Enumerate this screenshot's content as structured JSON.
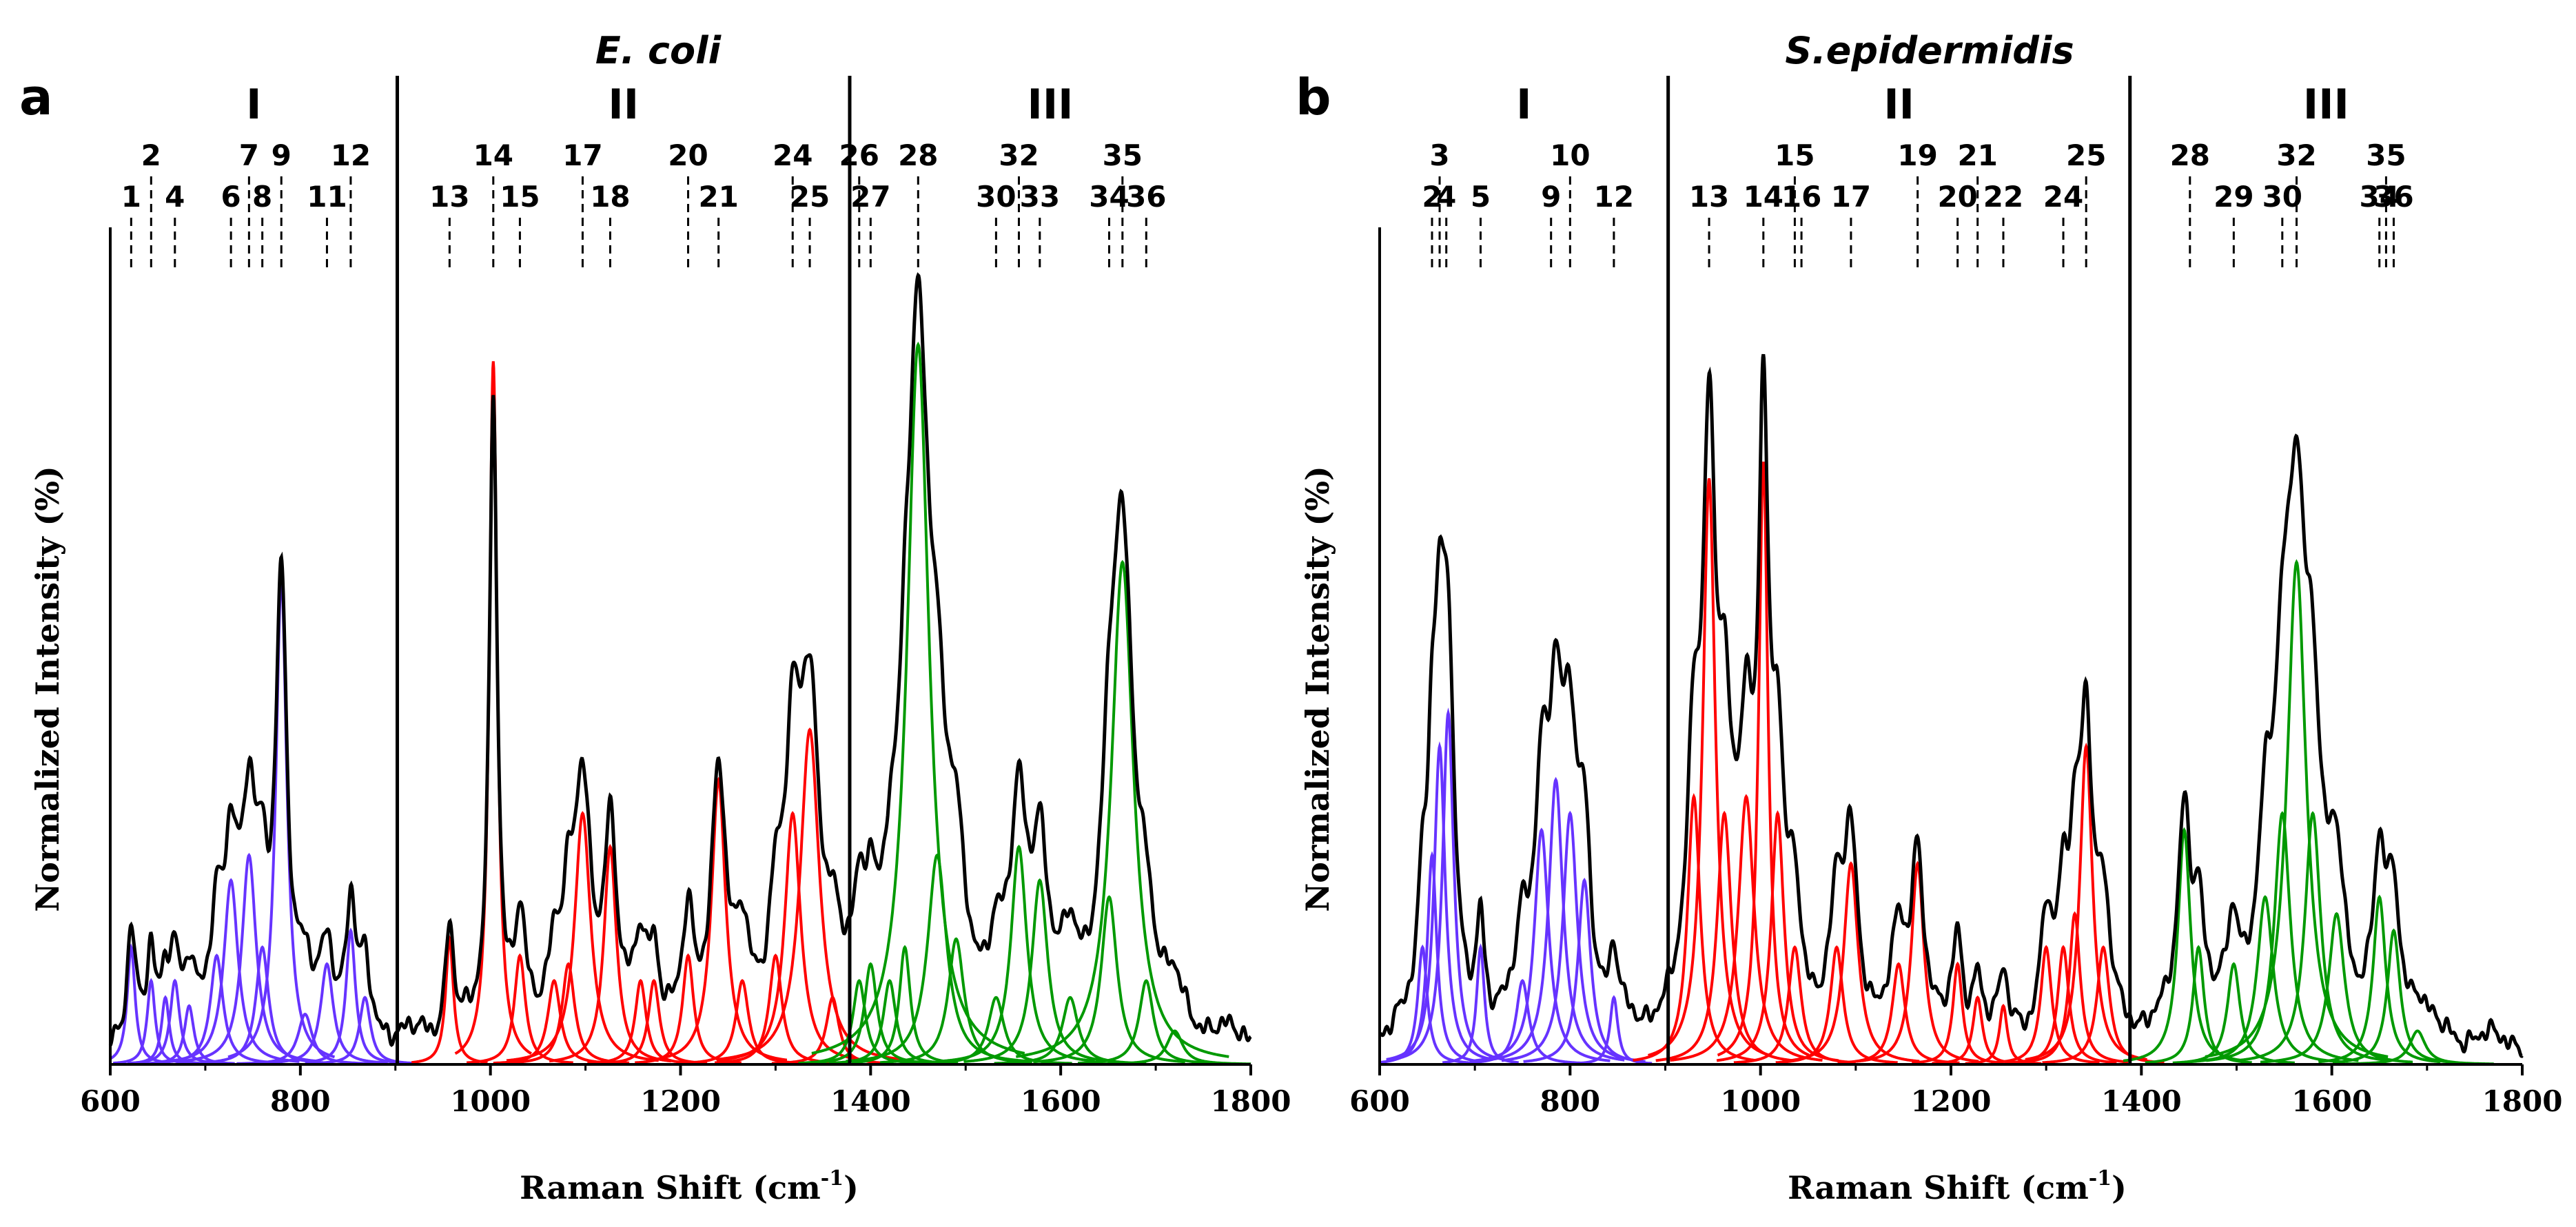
{
  "chart_data": [
    {
      "type": "line",
      "panel_label": "a",
      "title": "E. coli",
      "xlabel": "Raman Shift (cm",
      "xlabel_sup": "-1",
      "xlabel_close": ")",
      "ylabel": "Normalized Intensity (%)",
      "xlim": [
        600,
        1800
      ],
      "ylim": [
        0,
        100
      ],
      "xticks": [
        600,
        800,
        1000,
        1200,
        1400,
        1600,
        1800
      ],
      "regions": [
        {
          "label": "I",
          "start": 600,
          "end": 902,
          "color": "#6633ff"
        },
        {
          "label": "II",
          "start": 902,
          "end": 1378,
          "color": "#ff0000"
        },
        {
          "label": "III",
          "start": 1378,
          "end": 1800,
          "color": "#009900"
        }
      ],
      "band_markers": [
        {
          "label": "1",
          "x": 622,
          "row": 2
        },
        {
          "label": "2",
          "x": 643,
          "row": 1
        },
        {
          "label": "4",
          "x": 668,
          "row": 2
        },
        {
          "label": "6",
          "x": 727,
          "row": 2
        },
        {
          "label": "7",
          "x": 746,
          "row": 1
        },
        {
          "label": "8",
          "x": 760,
          "row": 2
        },
        {
          "label": "9",
          "x": 780,
          "row": 1
        },
        {
          "label": "11",
          "x": 828,
          "row": 2
        },
        {
          "label": "12",
          "x": 853,
          "row": 1
        },
        {
          "label": "13",
          "x": 957,
          "row": 2
        },
        {
          "label": "14",
          "x": 1003,
          "row": 1
        },
        {
          "label": "15",
          "x": 1031,
          "row": 2
        },
        {
          "label": "17",
          "x": 1097,
          "row": 1
        },
        {
          "label": "18",
          "x": 1126,
          "row": 2
        },
        {
          "label": "20",
          "x": 1208,
          "row": 1
        },
        {
          "label": "21",
          "x": 1240,
          "row": 2
        },
        {
          "label": "24",
          "x": 1318,
          "row": 1
        },
        {
          "label": "25",
          "x": 1336,
          "row": 2
        },
        {
          "label": "26",
          "x": 1388,
          "row": 1
        },
        {
          "label": "27",
          "x": 1400,
          "row": 2
        },
        {
          "label": "28",
          "x": 1450,
          "row": 1
        },
        {
          "label": "30",
          "x": 1532,
          "row": 2
        },
        {
          "label": "32",
          "x": 1556,
          "row": 1
        },
        {
          "label": "33",
          "x": 1578,
          "row": 2
        },
        {
          "label": "34",
          "x": 1651,
          "row": 2
        },
        {
          "label": "35",
          "x": 1665,
          "row": 1
        },
        {
          "label": "36",
          "x": 1690,
          "row": 2
        }
      ],
      "peaks": [
        {
          "x": 622,
          "h": 14,
          "w": 5,
          "r": 0
        },
        {
          "x": 643,
          "h": 10,
          "w": 5,
          "r": 0
        },
        {
          "x": 658,
          "h": 8,
          "w": 5,
          "r": 0
        },
        {
          "x": 668,
          "h": 10,
          "w": 6,
          "r": 0
        },
        {
          "x": 683,
          "h": 7,
          "w": 6,
          "r": 0
        },
        {
          "x": 712,
          "h": 13,
          "w": 8,
          "r": 0
        },
        {
          "x": 727,
          "h": 22,
          "w": 9,
          "r": 0
        },
        {
          "x": 746,
          "h": 25,
          "w": 9,
          "r": 0
        },
        {
          "x": 760,
          "h": 14,
          "w": 8,
          "r": 0
        },
        {
          "x": 780,
          "h": 58,
          "w": 7,
          "r": 0
        },
        {
          "x": 805,
          "h": 6,
          "w": 9,
          "r": 0
        },
        {
          "x": 828,
          "h": 12,
          "w": 8,
          "r": 0
        },
        {
          "x": 853,
          "h": 16,
          "w": 6,
          "r": 0
        },
        {
          "x": 868,
          "h": 8,
          "w": 7,
          "r": 0
        },
        {
          "x": 957,
          "h": 15,
          "w": 5,
          "r": 1
        },
        {
          "x": 1003,
          "h": 84,
          "w": 5,
          "r": 1
        },
        {
          "x": 1031,
          "h": 13,
          "w": 7,
          "r": 1
        },
        {
          "x": 1067,
          "h": 10,
          "w": 8,
          "r": 1
        },
        {
          "x": 1082,
          "h": 12,
          "w": 8,
          "r": 1
        },
        {
          "x": 1097,
          "h": 30,
          "w": 10,
          "r": 1
        },
        {
          "x": 1126,
          "h": 26,
          "w": 8,
          "r": 1
        },
        {
          "x": 1158,
          "h": 10,
          "w": 7,
          "r": 1
        },
        {
          "x": 1172,
          "h": 10,
          "w": 7,
          "r": 1
        },
        {
          "x": 1208,
          "h": 13,
          "w": 7,
          "r": 1
        },
        {
          "x": 1240,
          "h": 34,
          "w": 9,
          "r": 1
        },
        {
          "x": 1265,
          "h": 10,
          "w": 8,
          "r": 1
        },
        {
          "x": 1300,
          "h": 13,
          "w": 8,
          "r": 1
        },
        {
          "x": 1318,
          "h": 30,
          "w": 10,
          "r": 1
        },
        {
          "x": 1336,
          "h": 40,
          "w": 12,
          "r": 1
        },
        {
          "x": 1360,
          "h": 8,
          "w": 8,
          "r": 1
        },
        {
          "x": 1388,
          "h": 10,
          "w": 8,
          "r": 2
        },
        {
          "x": 1400,
          "h": 12,
          "w": 8,
          "r": 2
        },
        {
          "x": 1420,
          "h": 10,
          "w": 8,
          "r": 2
        },
        {
          "x": 1436,
          "h": 14,
          "w": 7,
          "r": 2
        },
        {
          "x": 1450,
          "h": 86,
          "w": 14,
          "r": 2
        },
        {
          "x": 1470,
          "h": 25,
          "w": 12,
          "r": 2
        },
        {
          "x": 1490,
          "h": 15,
          "w": 10,
          "r": 2
        },
        {
          "x": 1532,
          "h": 8,
          "w": 10,
          "r": 2
        },
        {
          "x": 1556,
          "h": 26,
          "w": 10,
          "r": 2
        },
        {
          "x": 1578,
          "h": 22,
          "w": 10,
          "r": 2
        },
        {
          "x": 1610,
          "h": 8,
          "w": 10,
          "r": 2
        },
        {
          "x": 1651,
          "h": 20,
          "w": 10,
          "r": 2
        },
        {
          "x": 1665,
          "h": 60,
          "w": 14,
          "r": 2
        },
        {
          "x": 1690,
          "h": 10,
          "w": 9,
          "r": 2
        },
        {
          "x": 1720,
          "h": 4,
          "w": 10,
          "r": 2
        }
      ]
    },
    {
      "type": "line",
      "panel_label": "b",
      "title": "S.epidermidis",
      "xlabel": "Raman Shift (cm",
      "xlabel_sup": "-1",
      "xlabel_close": ")",
      "ylabel": "Normalized Intensity (%)",
      "xlim": [
        600,
        1800
      ],
      "ylim": [
        0,
        100
      ],
      "xticks": [
        600,
        800,
        1000,
        1200,
        1400,
        1600,
        1800
      ],
      "regions": [
        {
          "label": "I",
          "start": 600,
          "end": 903,
          "color": "#6633ff"
        },
        {
          "label": "II",
          "start": 903,
          "end": 1388,
          "color": "#ff0000"
        },
        {
          "label": "III",
          "start": 1388,
          "end": 1800,
          "color": "#009900"
        }
      ],
      "band_markers": [
        {
          "label": "2",
          "x": 655,
          "row": 2
        },
        {
          "label": "3",
          "x": 663,
          "row": 1
        },
        {
          "label": "4",
          "x": 670,
          "row": 2
        },
        {
          "label": "5",
          "x": 706,
          "row": 2
        },
        {
          "label": "9",
          "x": 780,
          "row": 2
        },
        {
          "label": "10",
          "x": 800,
          "row": 1
        },
        {
          "label": "12",
          "x": 846,
          "row": 2
        },
        {
          "label": "13",
          "x": 946,
          "row": 2
        },
        {
          "label": "14",
          "x": 1003,
          "row": 2
        },
        {
          "label": "15",
          "x": 1036,
          "row": 1
        },
        {
          "label": "16",
          "x": 1043,
          "row": 2
        },
        {
          "label": "17",
          "x": 1095,
          "row": 2
        },
        {
          "label": "19",
          "x": 1165,
          "row": 1
        },
        {
          "label": "20",
          "x": 1207,
          "row": 2
        },
        {
          "label": "21",
          "x": 1228,
          "row": 1
        },
        {
          "label": "22",
          "x": 1255,
          "row": 2
        },
        {
          "label": "24",
          "x": 1318,
          "row": 2
        },
        {
          "label": "25",
          "x": 1342,
          "row": 1
        },
        {
          "label": "28",
          "x": 1451,
          "row": 1
        },
        {
          "label": "29",
          "x": 1497,
          "row": 2
        },
        {
          "label": "30",
          "x": 1548,
          "row": 2
        },
        {
          "label": "32",
          "x": 1563,
          "row": 1
        },
        {
          "label": "34",
          "x": 1650,
          "row": 2
        },
        {
          "label": "35",
          "x": 1657,
          "row": 1
        },
        {
          "label": "36",
          "x": 1665,
          "row": 2
        }
      ],
      "peaks": [
        {
          "x": 645,
          "h": 14,
          "w": 6,
          "r": 0
        },
        {
          "x": 655,
          "h": 25,
          "w": 6,
          "r": 0
        },
        {
          "x": 663,
          "h": 38,
          "w": 7,
          "r": 0
        },
        {
          "x": 672,
          "h": 42,
          "w": 7,
          "r": 0
        },
        {
          "x": 706,
          "h": 14,
          "w": 5,
          "r": 0
        },
        {
          "x": 750,
          "h": 10,
          "w": 8,
          "r": 0
        },
        {
          "x": 770,
          "h": 28,
          "w": 9,
          "r": 0
        },
        {
          "x": 785,
          "h": 34,
          "w": 9,
          "r": 0
        },
        {
          "x": 800,
          "h": 30,
          "w": 9,
          "r": 0
        },
        {
          "x": 815,
          "h": 22,
          "w": 8,
          "r": 0
        },
        {
          "x": 846,
          "h": 8,
          "w": 5,
          "r": 0
        },
        {
          "x": 930,
          "h": 32,
          "w": 8,
          "r": 1
        },
        {
          "x": 946,
          "h": 70,
          "w": 8,
          "r": 1
        },
        {
          "x": 962,
          "h": 30,
          "w": 9,
          "r": 1
        },
        {
          "x": 985,
          "h": 32,
          "w": 10,
          "r": 1
        },
        {
          "x": 1003,
          "h": 72,
          "w": 6,
          "r": 1
        },
        {
          "x": 1018,
          "h": 30,
          "w": 8,
          "r": 1
        },
        {
          "x": 1036,
          "h": 14,
          "w": 8,
          "r": 1
        },
        {
          "x": 1080,
          "h": 14,
          "w": 8,
          "r": 1
        },
        {
          "x": 1095,
          "h": 24,
          "w": 9,
          "r": 1
        },
        {
          "x": 1145,
          "h": 12,
          "w": 8,
          "r": 1
        },
        {
          "x": 1165,
          "h": 24,
          "w": 8,
          "r": 1
        },
        {
          "x": 1207,
          "h": 12,
          "w": 6,
          "r": 1
        },
        {
          "x": 1228,
          "h": 8,
          "w": 6,
          "r": 1
        },
        {
          "x": 1255,
          "h": 7,
          "w": 5,
          "r": 1
        },
        {
          "x": 1300,
          "h": 14,
          "w": 7,
          "r": 1
        },
        {
          "x": 1318,
          "h": 14,
          "w": 7,
          "r": 1
        },
        {
          "x": 1330,
          "h": 18,
          "w": 7,
          "r": 1
        },
        {
          "x": 1342,
          "h": 38,
          "w": 8,
          "r": 1
        },
        {
          "x": 1360,
          "h": 14,
          "w": 8,
          "r": 1
        },
        {
          "x": 1445,
          "h": 28,
          "w": 8,
          "r": 2
        },
        {
          "x": 1460,
          "h": 14,
          "w": 7,
          "r": 2
        },
        {
          "x": 1497,
          "h": 12,
          "w": 8,
          "r": 2
        },
        {
          "x": 1530,
          "h": 20,
          "w": 10,
          "r": 2
        },
        {
          "x": 1548,
          "h": 30,
          "w": 10,
          "r": 2
        },
        {
          "x": 1563,
          "h": 60,
          "w": 12,
          "r": 2
        },
        {
          "x": 1580,
          "h": 30,
          "w": 10,
          "r": 2
        },
        {
          "x": 1605,
          "h": 18,
          "w": 10,
          "r": 2
        },
        {
          "x": 1650,
          "h": 20,
          "w": 8,
          "r": 2
        },
        {
          "x": 1665,
          "h": 16,
          "w": 8,
          "r": 2
        },
        {
          "x": 1690,
          "h": 4,
          "w": 10,
          "r": 2
        }
      ]
    }
  ],
  "colors": {
    "region_I": "#6633ff",
    "region_II": "#ff0000",
    "region_III": "#009900",
    "composite": "#000000"
  }
}
